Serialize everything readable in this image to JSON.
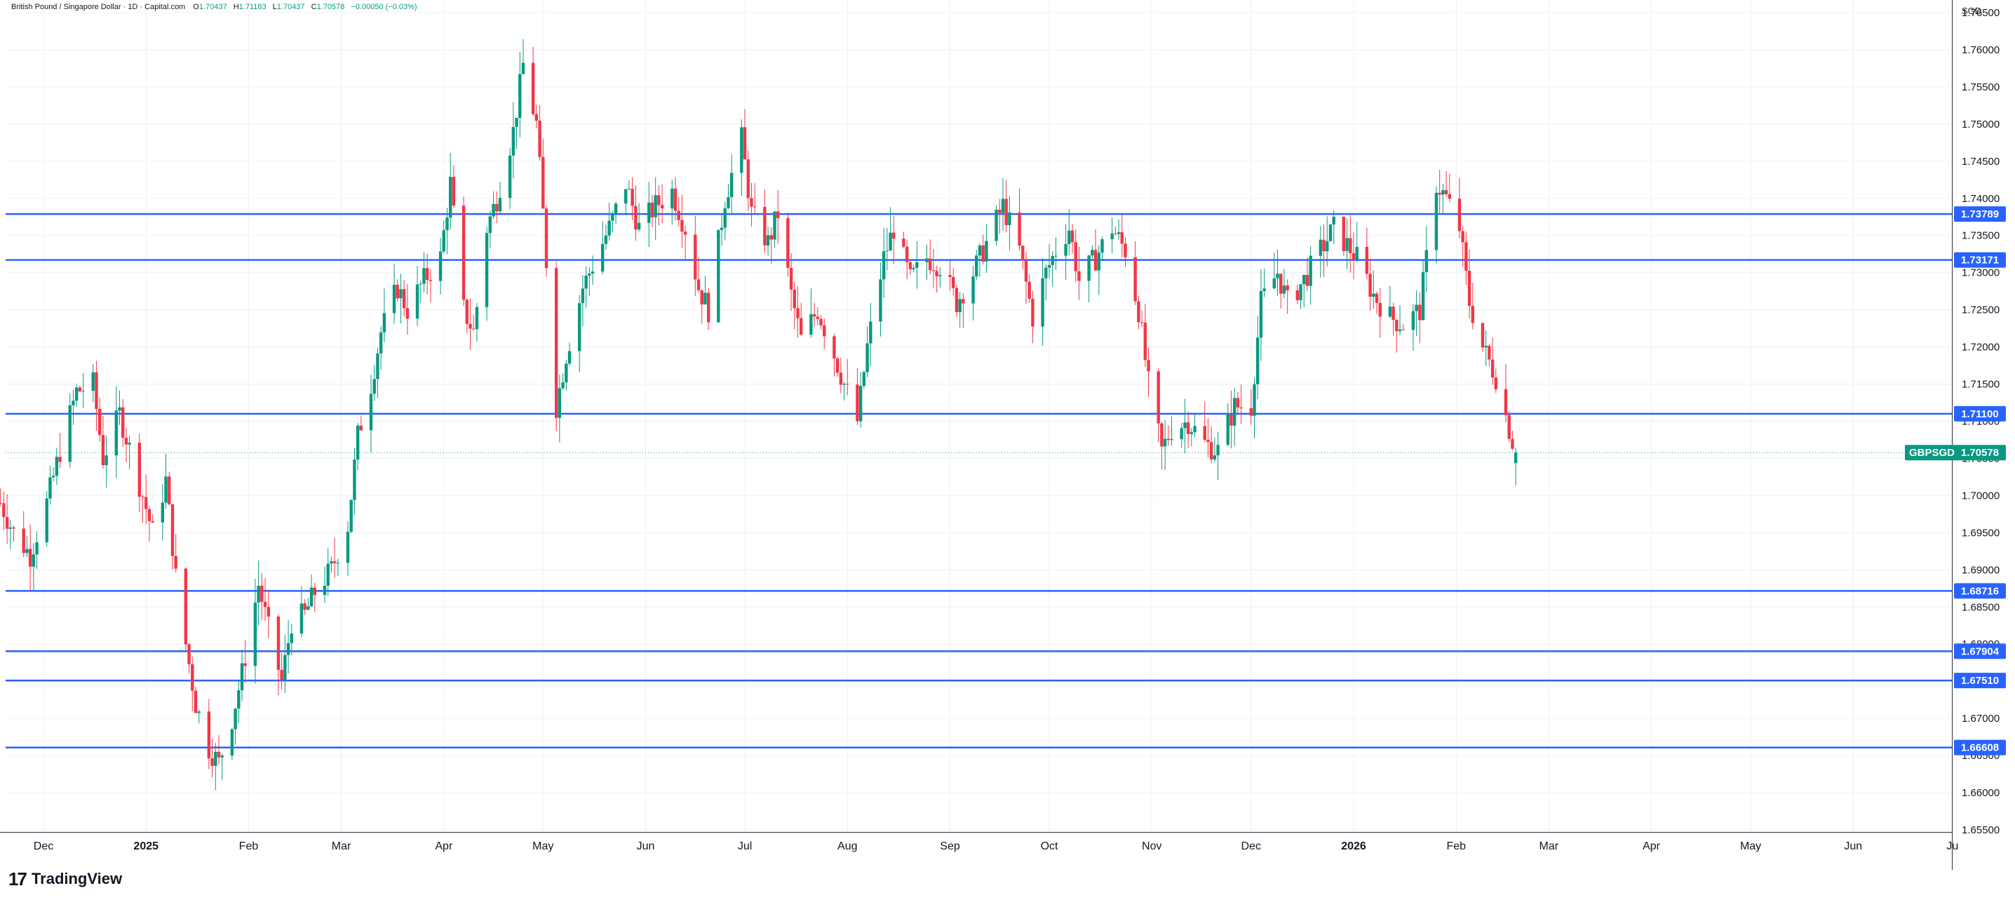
{
  "header": {
    "title": "British Pound / Singapore Dollar · 1D · Capital.com",
    "open_label": "O",
    "open": "1.70437",
    "high_label": "H",
    "high": "1.71183",
    "low_label": "L",
    "low": "1.70437",
    "close_label": "C",
    "close": "1.70578",
    "change": "−0.00050 (−0.03%)"
  },
  "branding": {
    "logo_text": "TradingView",
    "logo_mark": "17"
  },
  "colors": {
    "up": "#089981",
    "down": "#f23645",
    "level_line": "#2962ff",
    "grid": "#eef0f3"
  },
  "chart_data": {
    "type": "candlestick",
    "symbol": "GBPSGD",
    "currency_label": "SGD",
    "last_price": 1.70578,
    "ylim": [
      1.655,
      1.765
    ],
    "y_ticks": [
      "1.76500",
      "1.76000",
      "1.75500",
      "1.75000",
      "1.74500",
      "1.74000",
      "1.73500",
      "1.73000",
      "1.72500",
      "1.72000",
      "1.71500",
      "1.71000",
      "1.70500",
      "1.70000",
      "1.69500",
      "1.69000",
      "1.68500",
      "1.68000",
      "1.67500",
      "1.67000",
      "1.66500",
      "1.66000",
      "1.65500"
    ],
    "x_ticks": [
      {
        "label": "Dec",
        "date": "2024-12-01"
      },
      {
        "label": "2025",
        "date": "2025-01-01",
        "bold": true
      },
      {
        "label": "Feb",
        "date": "2025-02-01"
      },
      {
        "label": "Mar",
        "date": "2025-03-01"
      },
      {
        "label": "Apr",
        "date": "2025-04-01"
      },
      {
        "label": "May",
        "date": "2025-05-01"
      },
      {
        "label": "Jun",
        "date": "2025-06-01"
      },
      {
        "label": "Jul",
        "date": "2025-07-01"
      },
      {
        "label": "Aug",
        "date": "2025-08-01"
      },
      {
        "label": "Sep",
        "date": "2025-09-01"
      },
      {
        "label": "Oct",
        "date": "2025-10-01"
      },
      {
        "label": "Nov",
        "date": "2025-11-01"
      },
      {
        "label": "Dec",
        "date": "2025-12-01"
      },
      {
        "label": "2026",
        "date": "2026-01-01",
        "bold": true
      },
      {
        "label": "Feb",
        "date": "2026-02-01"
      },
      {
        "label": "Mar",
        "date": "2026-03-01"
      },
      {
        "label": "Apr",
        "date": "2026-04-01"
      },
      {
        "label": "May",
        "date": "2026-05-01"
      },
      {
        "label": "Jun",
        "date": "2026-06-01"
      },
      {
        "label": "Ju",
        "date": "2026-07-01"
      }
    ],
    "horizontal_levels": [
      {
        "value": 1.73789,
        "label": "1.73789"
      },
      {
        "value": 1.73171,
        "label": "1.73171"
      },
      {
        "value": 1.711,
        "label": "1.71100"
      },
      {
        "value": 1.68716,
        "label": "1.68716"
      },
      {
        "value": 1.67904,
        "label": "1.67904"
      },
      {
        "value": 1.6751,
        "label": "1.67510"
      },
      {
        "value": 1.66608,
        "label": "1.66608"
      }
    ],
    "last_price_label": "1.70578",
    "price_path": [
      [
        "2024-11-18",
        1.699
      ],
      [
        "2024-11-22",
        1.695
      ],
      [
        "2024-11-27",
        1.692
      ],
      [
        "2024-12-02",
        1.699
      ],
      [
        "2024-12-06",
        1.706
      ],
      [
        "2024-12-11",
        1.714
      ],
      [
        "2024-12-16",
        1.715
      ],
      [
        "2024-12-19",
        1.705
      ],
      [
        "2024-12-24",
        1.711
      ],
      [
        "2024-12-31",
        1.7
      ],
      [
        "2025-01-03",
        1.695
      ],
      [
        "2025-01-07",
        1.702
      ],
      [
        "2025-01-10",
        1.689
      ],
      [
        "2025-01-13",
        1.68
      ],
      [
        "2025-01-16",
        1.672
      ],
      [
        "2025-01-20",
        1.666
      ],
      [
        "2025-01-23",
        1.664
      ],
      [
        "2025-01-27",
        1.67
      ],
      [
        "2025-01-30",
        1.676
      ],
      [
        "2025-02-04",
        1.688
      ],
      [
        "2025-02-07",
        1.682
      ],
      [
        "2025-02-11",
        1.675
      ],
      [
        "2025-02-14",
        1.683
      ],
      [
        "2025-02-18",
        1.684
      ],
      [
        "2025-02-21",
        1.687
      ],
      [
        "2025-02-26",
        1.69
      ],
      [
        "2025-03-03",
        1.696
      ],
      [
        "2025-03-06",
        1.708
      ],
      [
        "2025-03-10",
        1.715
      ],
      [
        "2025-03-13",
        1.722
      ],
      [
        "2025-03-18",
        1.728
      ],
      [
        "2025-03-21",
        1.725
      ],
      [
        "2025-03-26",
        1.729
      ],
      [
        "2025-03-31",
        1.732
      ],
      [
        "2025-04-03",
        1.742
      ],
      [
        "2025-04-07",
        1.725
      ],
      [
        "2025-04-10",
        1.722
      ],
      [
        "2025-04-14",
        1.736
      ],
      [
        "2025-04-17",
        1.74
      ],
      [
        "2025-04-22",
        1.749
      ],
      [
        "2025-04-25",
        1.758
      ],
      [
        "2025-04-29",
        1.75
      ],
      [
        "2025-05-01",
        1.738
      ],
      [
        "2025-05-05",
        1.712
      ],
      [
        "2025-05-08",
        1.719
      ],
      [
        "2025-05-13",
        1.728
      ],
      [
        "2025-05-16",
        1.731
      ],
      [
        "2025-05-21",
        1.736
      ],
      [
        "2025-05-26",
        1.742
      ],
      [
        "2025-05-30",
        1.736
      ],
      [
        "2025-06-04",
        1.739
      ],
      [
        "2025-06-09",
        1.741
      ],
      [
        "2025-06-13",
        1.736
      ],
      [
        "2025-06-17",
        1.728
      ],
      [
        "2025-06-20",
        1.725
      ],
      [
        "2025-06-25",
        1.74
      ],
      [
        "2025-06-30",
        1.748
      ],
      [
        "2025-07-03",
        1.738
      ],
      [
        "2025-07-08",
        1.734
      ],
      [
        "2025-07-11",
        1.738
      ],
      [
        "2025-07-15",
        1.727
      ],
      [
        "2025-07-18",
        1.721
      ],
      [
        "2025-07-23",
        1.725
      ],
      [
        "2025-07-28",
        1.719
      ],
      [
        "2025-07-31",
        1.715
      ],
      [
        "2025-08-04",
        1.71
      ],
      [
        "2025-08-07",
        1.72
      ],
      [
        "2025-08-12",
        1.732
      ],
      [
        "2025-08-15",
        1.736
      ],
      [
        "2025-08-20",
        1.729
      ],
      [
        "2025-08-25",
        1.732
      ],
      [
        "2025-08-29",
        1.731
      ],
      [
        "2025-09-03",
        1.726
      ],
      [
        "2025-09-08",
        1.73
      ],
      [
        "2025-09-12",
        1.734
      ],
      [
        "2025-09-17",
        1.739
      ],
      [
        "2025-09-22",
        1.733
      ],
      [
        "2025-09-26",
        1.724
      ],
      [
        "2025-09-30",
        1.73
      ],
      [
        "2025-10-03",
        1.733
      ],
      [
        "2025-10-07",
        1.736
      ],
      [
        "2025-10-10",
        1.729
      ],
      [
        "2025-10-15",
        1.732
      ],
      [
        "2025-10-20",
        1.736
      ],
      [
        "2025-10-24",
        1.733
      ],
      [
        "2025-10-28",
        1.725
      ],
      [
        "2025-10-31",
        1.715
      ],
      [
        "2025-11-04",
        1.706
      ],
      [
        "2025-11-07",
        1.709
      ],
      [
        "2025-11-12",
        1.71
      ],
      [
        "2025-11-17",
        1.707
      ],
      [
        "2025-11-21",
        1.706
      ],
      [
        "2025-11-26",
        1.712
      ],
      [
        "2025-12-01",
        1.712
      ],
      [
        "2025-12-04",
        1.726
      ],
      [
        "2025-12-09",
        1.73
      ],
      [
        "2025-12-12",
        1.726
      ],
      [
        "2025-12-17",
        1.729
      ],
      [
        "2025-12-22",
        1.733
      ],
      [
        "2025-12-26",
        1.736
      ],
      [
        "2026-01-02",
        1.732
      ],
      [
        "2026-01-07",
        1.727
      ],
      [
        "2026-01-12",
        1.724
      ],
      [
        "2026-01-16",
        1.723
      ],
      [
        "2026-01-21",
        1.725
      ],
      [
        "2026-01-26",
        1.742
      ],
      [
        "2026-01-29",
        1.74
      ],
      [
        "2026-02-02",
        1.736
      ],
      [
        "2026-02-05",
        1.726
      ],
      [
        "2026-02-09",
        1.72
      ],
      [
        "2026-02-13",
        1.716
      ],
      [
        "2026-02-17",
        1.709
      ],
      [
        "2026-02-19",
        1.70578
      ]
    ]
  }
}
